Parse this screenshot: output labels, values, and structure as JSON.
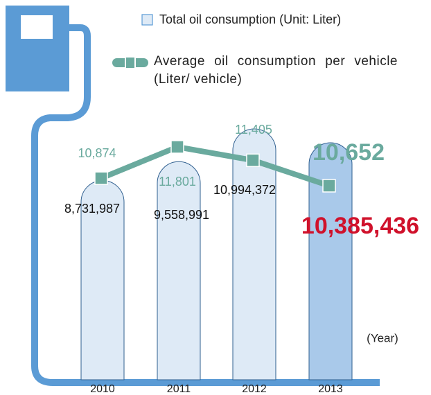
{
  "chart_data": {
    "type": "bar-line",
    "categories": [
      "2010",
      "2011",
      "2012",
      "2013"
    ],
    "x_label": "(Year)",
    "series": [
      {
        "name": "Total oil consumption (Unit: Liter)",
        "type": "bar",
        "color": "#deeaf6",
        "highlight_color": "#a9c9ea",
        "values": [
          8731987,
          9558991,
          10994372,
          10385436
        ],
        "value_labels": [
          "8,731,987",
          "9,558,991",
          "10,994,372",
          "10,385,436"
        ]
      },
      {
        "name": "Average oil consumption per vehicle (Liter/ vehicle)",
        "type": "line",
        "color": "#6aaa9e",
        "values": [
          10874,
          11801,
          11405,
          10652
        ],
        "value_labels": [
          "10,874",
          "11,801",
          "11,405",
          "10,652"
        ]
      }
    ]
  }
}
